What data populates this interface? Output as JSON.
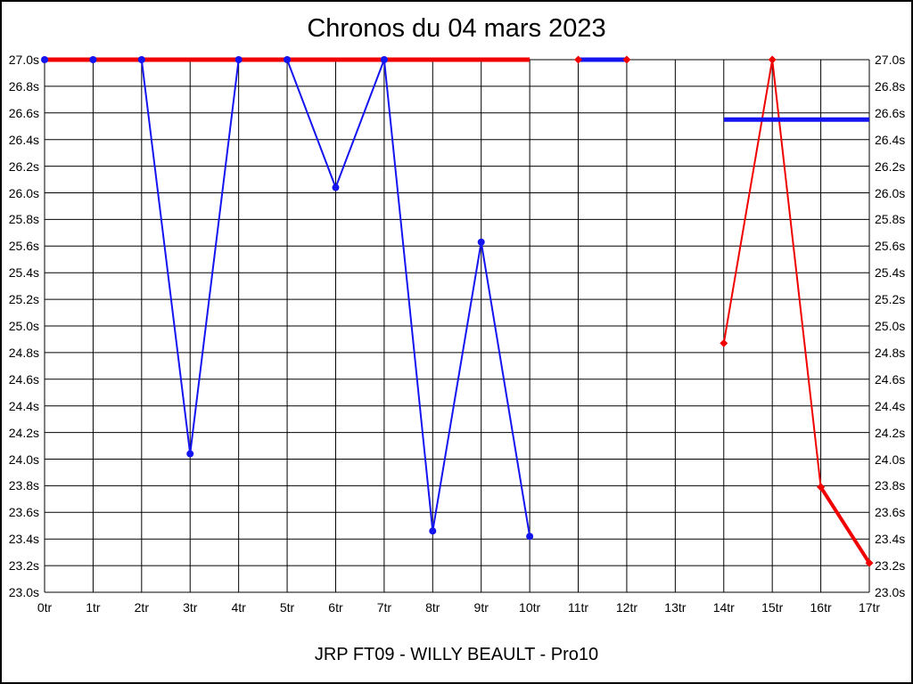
{
  "page": {
    "title": "Chronos du 04 mars 2023",
    "subtitle": "JRP FT09 - WILLY BEAULT - Pro10"
  },
  "colors": {
    "red": "#f00000",
    "blue": "#1414f0",
    "grid": "#000000",
    "background": "#ffffff",
    "text": "#000000"
  },
  "chart_data": {
    "type": "line",
    "title": "Chronos du 04 mars 2023",
    "subtitle": "JRP FT09 - WILLY BEAULT - Pro10",
    "xlabel": "",
    "ylabel": "",
    "x_categories": [
      "0tr",
      "1tr",
      "2tr",
      "3tr",
      "4tr",
      "5tr",
      "6tr",
      "7tr",
      "8tr",
      "9tr",
      "10tr",
      "11tr",
      "12tr",
      "13tr",
      "14tr",
      "15tr",
      "16tr",
      "17tr"
    ],
    "ylim": [
      23.0,
      27.0
    ],
    "ytick_step": 0.2,
    "ytick_labels": [
      "27.0s",
      "26.8s",
      "26.6s",
      "26.4s",
      "26.2s",
      "26.0s",
      "25.8s",
      "25.6s",
      "25.4s",
      "25.2s",
      "25.0s",
      "24.8s",
      "24.6s",
      "24.4s",
      "24.2s",
      "24.0s",
      "23.8s",
      "23.6s",
      "23.4s",
      "23.2s",
      "23.0s"
    ],
    "grid": true,
    "legend": "none",
    "series": [
      {
        "name": "blue-lap-times-run1",
        "color": "blue",
        "style": "line-markers",
        "marker": "circle",
        "line_width": 2,
        "points": [
          [
            0,
            27.0
          ],
          [
            1,
            27.0
          ],
          [
            2,
            27.0
          ],
          [
            3,
            24.04
          ],
          [
            4,
            27.0
          ],
          [
            5,
            27.0
          ],
          [
            6,
            26.04
          ],
          [
            7,
            27.0
          ],
          [
            8,
            23.46
          ],
          [
            9,
            25.63
          ],
          [
            10,
            23.42
          ]
        ]
      },
      {
        "name": "red-flat-line-27s",
        "color": "red",
        "style": "line",
        "marker": "none",
        "line_width": 5,
        "points": [
          [
            0,
            27.0
          ],
          [
            10,
            27.0
          ]
        ]
      },
      {
        "name": "blue-thick-segment-11-12",
        "color": "blue",
        "style": "line",
        "marker": "none",
        "line_width": 5,
        "points": [
          [
            11,
            27.0
          ],
          [
            12,
            27.0
          ]
        ]
      },
      {
        "name": "red-lap-times-run2",
        "color": "red",
        "style": "line-markers",
        "marker": "diamond",
        "line_width": 2,
        "points": [
          [
            14,
            24.87
          ],
          [
            15,
            27.0
          ],
          [
            16,
            23.79
          ]
        ]
      },
      {
        "name": "blue-average-line",
        "color": "blue",
        "style": "line",
        "marker": "none",
        "line_width": 5,
        "points": [
          [
            14,
            26.55
          ],
          [
            17,
            26.55
          ]
        ]
      },
      {
        "name": "red-thick-final-segment",
        "color": "red",
        "style": "line-markers",
        "marker": "diamond",
        "line_width": 4,
        "points": [
          [
            16,
            23.79
          ],
          [
            17,
            23.22
          ]
        ]
      },
      {
        "name": "red-markers-27s",
        "color": "red",
        "style": "markers",
        "marker": "diamond",
        "line_width": 0,
        "points": [
          [
            11,
            27.0
          ],
          [
            12,
            27.0
          ]
        ]
      }
    ]
  }
}
